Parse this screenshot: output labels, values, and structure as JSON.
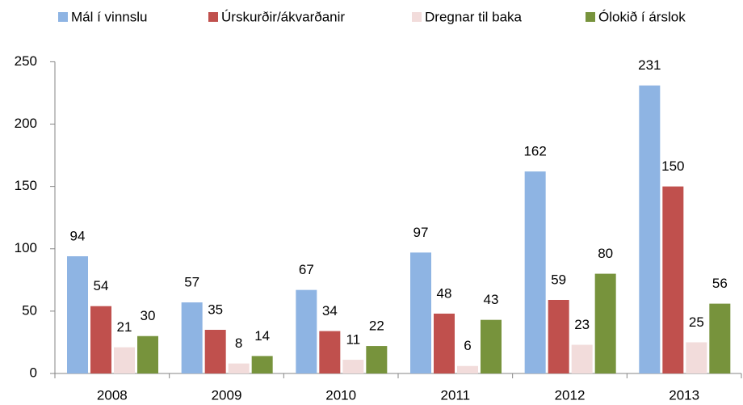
{
  "chart_data": {
    "type": "bar",
    "categories": [
      "2008",
      "2009",
      "2010",
      "2011",
      "2012",
      "2013"
    ],
    "series": [
      {
        "name": "Mál í vinnslu",
        "color": "#8EB4E3",
        "values": [
          94,
          57,
          67,
          97,
          162,
          231
        ]
      },
      {
        "name": "Úrskurðir/ákvarðanir",
        "color": "#C0504D",
        "values": [
          54,
          35,
          34,
          48,
          59,
          150
        ]
      },
      {
        "name": "Dregnar til baka",
        "color": "#F2DCDB",
        "values": [
          21,
          8,
          11,
          6,
          23,
          25
        ]
      },
      {
        "name": "Ólokið í árslok",
        "color": "#77933C",
        "values": [
          30,
          14,
          22,
          43,
          80,
          56
        ]
      }
    ],
    "ylim": [
      0,
      250
    ],
    "yticks": [
      0,
      50,
      100,
      150,
      200,
      250
    ],
    "grid": false,
    "legend": "top"
  }
}
